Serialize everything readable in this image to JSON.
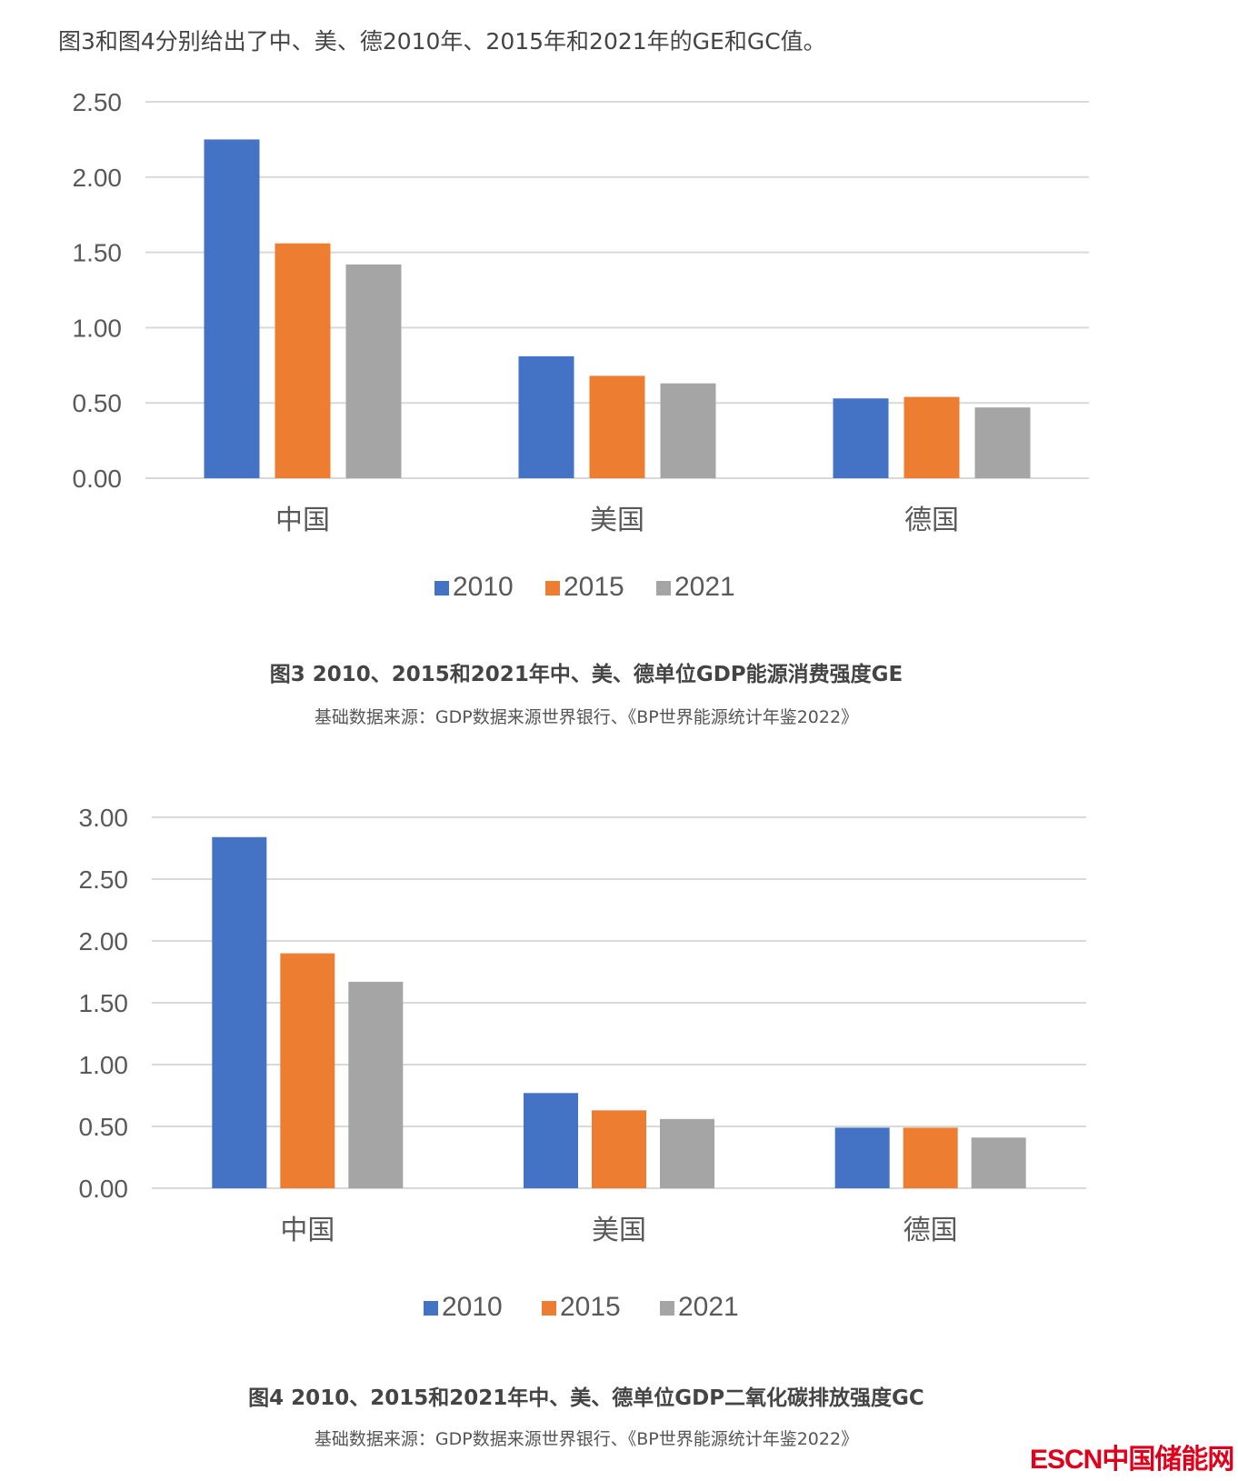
{
  "intro": "图3和图4分别给出了中、美、德2010年、2015年和2021年的GE和GC值。",
  "colors": {
    "2010": "#4472c4",
    "2015": "#ed7d31",
    "2021": "#a5a5a5"
  },
  "chart_data": [
    {
      "type": "bar",
      "categories": [
        "中国",
        "美国",
        "德国"
      ],
      "yticks": [
        "0.00",
        "0.50",
        "1.00",
        "1.50",
        "2.00",
        "2.50"
      ],
      "ylim": [
        0,
        2.5
      ],
      "grid": true,
      "legend": "bottom",
      "series": [
        {
          "name": "2010",
          "values": [
            2.25,
            0.81,
            0.53
          ]
        },
        {
          "name": "2015",
          "values": [
            1.56,
            0.68,
            0.54
          ]
        },
        {
          "name": "2021",
          "values": [
            1.42,
            0.63,
            0.47
          ]
        }
      ]
    },
    {
      "type": "bar",
      "categories": [
        "中国",
        "美国",
        "德国"
      ],
      "yticks": [
        "0.00",
        "0.50",
        "1.00",
        "1.50",
        "2.00",
        "2.50",
        "3.00"
      ],
      "ylim": [
        0,
        3.0
      ],
      "grid": true,
      "legend": "bottom",
      "series": [
        {
          "name": "2010",
          "values": [
            2.84,
            0.77,
            0.49
          ]
        },
        {
          "name": "2015",
          "values": [
            1.9,
            0.63,
            0.49
          ]
        },
        {
          "name": "2021",
          "values": [
            1.67,
            0.56,
            0.41
          ]
        }
      ]
    }
  ],
  "captions": [
    {
      "title": "图3  2010、2015和2021年中、美、德单位GDP能源消费强度GE",
      "source": "基础数据来源：GDP数据来源世界银行、《BP世界能源统计年鉴2022》"
    },
    {
      "title": "图4  2010、2015和2021年中、美、德单位GDP二氧化碳排放强度GC",
      "source": "基础数据来源：GDP数据来源世界银行、《BP世界能源统计年鉴2022》"
    }
  ],
  "watermark": "ESCN中国储能网"
}
